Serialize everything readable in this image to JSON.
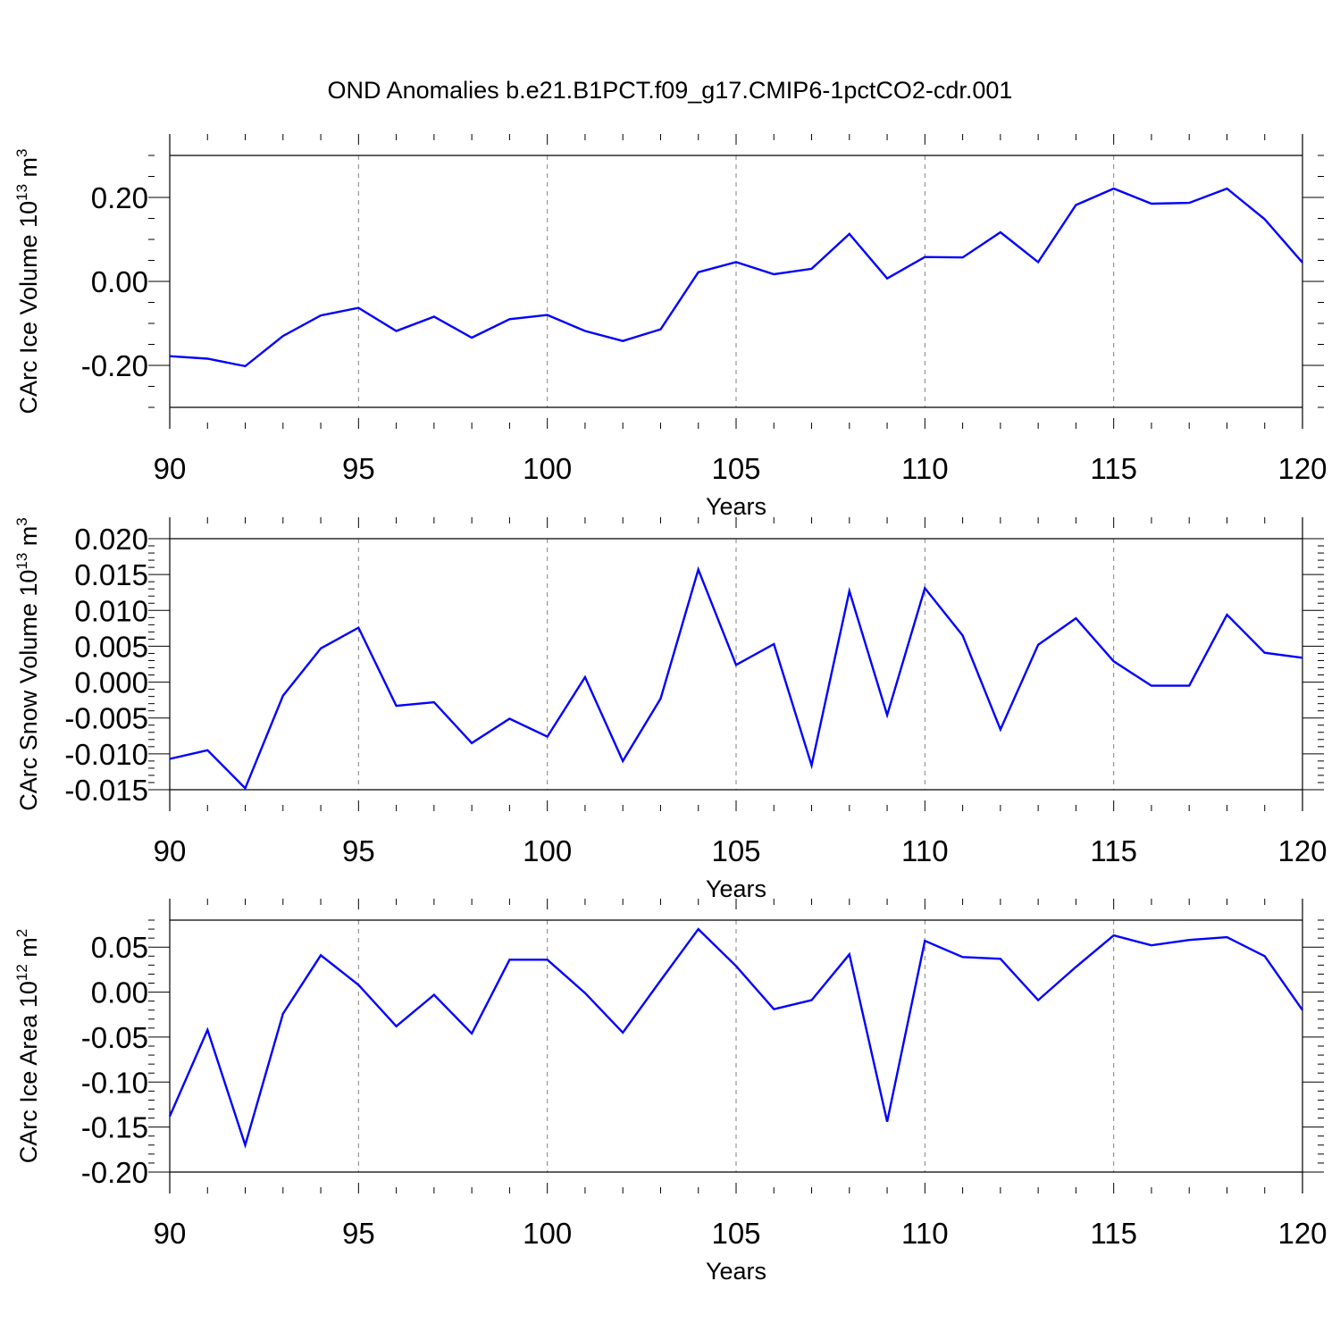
{
  "title": "OND Anomalies b.e21.B1PCT.f09_g17.CMIP6-1pctCO2-cdr.001",
  "colors": {
    "line": "#0000ff",
    "axis": "#000000",
    "grid": "#808080"
  },
  "chart_data": [
    {
      "type": "line",
      "xlabel": "Years",
      "ylabel_main": "CArc Ice Volume 10",
      "ylabel_exp": "13",
      "ylabel_unit": " m",
      "ylabel_unit_exp": "3",
      "xlim": [
        90,
        120
      ],
      "ylim": [
        -0.3,
        0.3
      ],
      "x_ticks": [
        90,
        95,
        100,
        105,
        110,
        115,
        120
      ],
      "x_tick_labels": [
        "90",
        "95",
        "100",
        "105",
        "110",
        "115",
        "120"
      ],
      "y_ticks": [
        -0.2,
        0.0,
        0.2
      ],
      "y_tick_labels": [
        "-0.20",
        "0.00",
        "0.20"
      ],
      "y_minor_step": 0.05,
      "x_grid": true,
      "x": [
        90,
        91,
        92,
        93,
        94,
        95,
        96,
        97,
        98,
        99,
        100,
        101,
        102,
        103,
        104,
        105,
        106,
        107,
        108,
        109,
        110,
        111,
        112,
        113,
        114,
        115,
        116,
        117,
        118,
        119,
        120
      ],
      "y": [
        -0.178,
        -0.184,
        -0.202,
        -0.13,
        -0.081,
        -0.063,
        -0.118,
        -0.084,
        -0.134,
        -0.09,
        -0.08,
        -0.118,
        -0.142,
        -0.114,
        0.022,
        0.046,
        0.017,
        0.03,
        0.113,
        0.007,
        0.058,
        0.057,
        0.117,
        0.046,
        0.182,
        0.221,
        0.185,
        0.187,
        0.221,
        0.148,
        0.045
      ]
    },
    {
      "type": "line",
      "xlabel": "Years",
      "ylabel_main": "CArc Snow Volume 10",
      "ylabel_exp": "13",
      "ylabel_unit": " m",
      "ylabel_unit_exp": "3",
      "xlim": [
        90,
        120
      ],
      "ylim": [
        -0.015,
        0.02
      ],
      "x_ticks": [
        90,
        95,
        100,
        105,
        110,
        115,
        120
      ],
      "x_tick_labels": [
        "90",
        "95",
        "100",
        "105",
        "110",
        "115",
        "120"
      ],
      "y_ticks": [
        -0.015,
        -0.01,
        -0.005,
        0.0,
        0.005,
        0.01,
        0.015,
        0.02
      ],
      "y_tick_labels": [
        "-0.015",
        "-0.010",
        "-0.005",
        "0.000",
        "0.005",
        "0.010",
        "0.015",
        "0.020"
      ],
      "y_minor_step": 0.001,
      "x_grid": true,
      "x": [
        90,
        91,
        92,
        93,
        94,
        95,
        96,
        97,
        98,
        99,
        100,
        101,
        102,
        103,
        104,
        105,
        106,
        107,
        108,
        109,
        110,
        111,
        112,
        113,
        114,
        115,
        116,
        117,
        118,
        119,
        120
      ],
      "y": [
        -0.0107,
        -0.0095,
        -0.0148,
        -0.0019,
        0.0047,
        0.0076,
        -0.0033,
        -0.0028,
        -0.0085,
        -0.0051,
        -0.0076,
        0.0007,
        -0.011,
        -0.0023,
        0.0157,
        0.0024,
        0.0053,
        -0.0116,
        0.0127,
        -0.0046,
        0.0131,
        0.0065,
        -0.0066,
        0.0052,
        0.0089,
        0.0029,
        -0.0005,
        -0.0005,
        0.0094,
        0.0041,
        0.0034
      ]
    },
    {
      "type": "line",
      "xlabel": "Years",
      "ylabel_main": "CArc Ice Area 10",
      "ylabel_exp": "12",
      "ylabel_unit": " m",
      "ylabel_unit_exp": "2",
      "xlim": [
        90,
        120
      ],
      "ylim": [
        -0.2,
        0.08
      ],
      "x_ticks": [
        90,
        95,
        100,
        105,
        110,
        115,
        120
      ],
      "x_tick_labels": [
        "90",
        "95",
        "100",
        "105",
        "110",
        "115",
        "120"
      ],
      "y_ticks": [
        -0.2,
        -0.15,
        -0.1,
        -0.05,
        0.0,
        0.05
      ],
      "y_tick_labels": [
        "-0.20",
        "-0.15",
        "-0.10",
        "-0.05",
        "0.00",
        "0.05"
      ],
      "y_minor_step": 0.01,
      "x_grid": true,
      "x": [
        90,
        91,
        92,
        93,
        94,
        95,
        96,
        97,
        98,
        99,
        100,
        101,
        102,
        103,
        104,
        105,
        106,
        107,
        108,
        109,
        110,
        111,
        112,
        113,
        114,
        115,
        116,
        117,
        118,
        119,
        120
      ],
      "y": [
        -0.138,
        -0.042,
        -0.17,
        -0.024,
        0.041,
        0.008,
        -0.038,
        -0.003,
        -0.046,
        0.036,
        0.036,
        -0.001,
        -0.045,
        0.013,
        0.07,
        0.029,
        -0.019,
        -0.009,
        0.042,
        -0.144,
        0.057,
        0.039,
        0.037,
        -0.009,
        0.028,
        0.063,
        0.052,
        0.058,
        0.061,
        0.04,
        -0.02
      ]
    }
  ]
}
